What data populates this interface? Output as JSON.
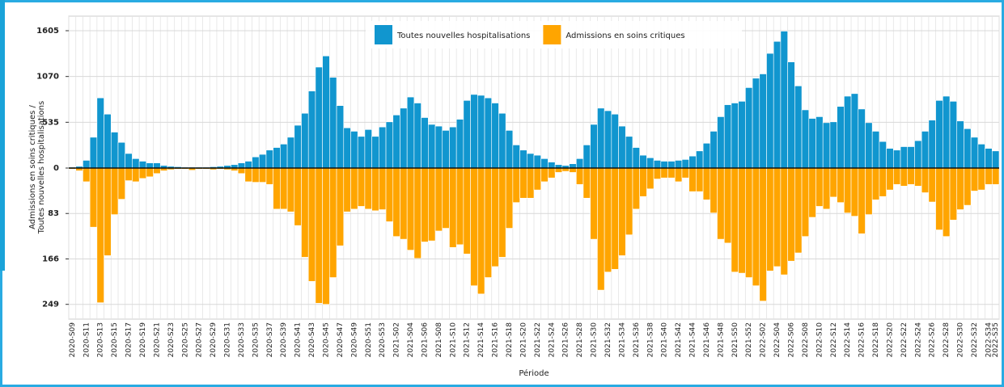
{
  "chart_data": {
    "type": "mirror-bar",
    "y_label_lines": [
      "Admissions en soins critiques /",
      "Toutes nouvelles hospitalisations"
    ],
    "x_label": "Période",
    "legend_position": "top-center",
    "grid": true,
    "ylim": [
      0,
      1775
    ],
    "yticks": [
      0,
      535,
      1070,
      1605
    ],
    "y2lim": [
      0,
      276
    ],
    "y2ticks": [
      83,
      166,
      249
    ],
    "y2_direction": "down",
    "categories": [
      "2020-S09",
      null,
      "2020-S11",
      null,
      "2020-S13",
      null,
      "2020-S15",
      null,
      "2020-S17",
      null,
      "2020-S19",
      null,
      "2020-S21",
      null,
      "2020-S23",
      null,
      "2020-S25",
      null,
      "2020-S27",
      null,
      "2020-S29",
      null,
      "2020-S31",
      null,
      "2020-S33",
      null,
      "2020-S35",
      null,
      "2020-S37",
      null,
      "2020-S39",
      null,
      "2020-S41",
      null,
      "2020-S43",
      null,
      "2020-S45",
      null,
      "2020-S47",
      null,
      "2020-S49",
      null,
      "2020-S51",
      null,
      "2020-S53",
      null,
      "2021-S02",
      null,
      "2021-S04",
      null,
      "2021-S06",
      null,
      "2021-S08",
      null,
      "2021-S10",
      null,
      "2021-S12",
      null,
      "2021-S14",
      null,
      "2021-S16",
      null,
      "2021-S18",
      null,
      "2021-S20",
      null,
      "2021-S22",
      null,
      "2021-S24",
      null,
      "2021-S26",
      null,
      "2021-S28",
      null,
      "2021-S30",
      null,
      "2021-S32",
      null,
      "2021-S34",
      null,
      "2021-S36",
      null,
      "2021-S38",
      null,
      "2021-S40",
      null,
      "2021-S42",
      null,
      "2021-S44",
      null,
      "2021-S46",
      null,
      "2021-S48",
      null,
      "2021-S50",
      null,
      "2021-S52",
      null,
      "2022-S02",
      null,
      "2022-S04",
      null,
      "2022-S06",
      null,
      "2022-S08",
      null,
      "2022-S10",
      null,
      "2022-S12",
      null,
      "2022-S14",
      null,
      "2022-S16",
      null,
      "2022-S18",
      null,
      "2022-S20",
      null,
      "2022-S22",
      null,
      "2022-S24",
      null,
      "2022-S26",
      null,
      "2022-S28",
      null,
      "2022-S30",
      null,
      "2022-S32",
      null,
      "2022-S34",
      "2022-S35"
    ],
    "series": [
      {
        "name": "Toutes nouvelles hospitalisations",
        "color": "#1196cf",
        "values": [
          10,
          20,
          90,
          360,
          820,
          630,
          420,
          300,
          170,
          110,
          80,
          60,
          60,
          30,
          20,
          15,
          10,
          10,
          10,
          10,
          15,
          20,
          30,
          40,
          60,
          80,
          130,
          160,
          210,
          240,
          280,
          360,
          500,
          640,
          900,
          1180,
          1310,
          1060,
          730,
          470,
          430,
          370,
          450,
          370,
          480,
          540,
          620,
          700,
          830,
          760,
          590,
          510,
          490,
          440,
          480,
          570,
          790,
          860,
          850,
          820,
          760,
          640,
          440,
          270,
          210,
          170,
          150,
          110,
          70,
          40,
          30,
          50,
          110,
          270,
          510,
          700,
          670,
          630,
          490,
          370,
          240,
          150,
          120,
          90,
          80,
          80,
          90,
          100,
          140,
          200,
          290,
          430,
          600,
          740,
          760,
          780,
          940,
          1050,
          1100,
          1340,
          1480,
          1600,
          1240,
          960,
          680,
          580,
          600,
          530,
          540,
          720,
          840,
          870,
          690,
          530,
          430,
          310,
          230,
          210,
          250,
          250,
          320,
          430,
          560,
          790,
          840,
          780,
          550,
          460,
          360,
          280,
          230,
          200
        ]
      },
      {
        "name": "Admissions en soins critiques",
        "color": "#ffa500",
        "axis": "y2",
        "values": [
          2,
          5,
          25,
          108,
          246,
          160,
          85,
          57,
          23,
          25,
          19,
          16,
          10,
          5,
          3,
          2,
          2,
          4,
          2,
          2,
          3,
          2,
          3,
          5,
          10,
          25,
          26,
          26,
          30,
          75,
          75,
          80,
          105,
          163,
          207,
          247,
          249,
          200,
          142,
          80,
          75,
          70,
          75,
          78,
          76,
          98,
          125,
          130,
          150,
          165,
          135,
          133,
          115,
          110,
          145,
          140,
          157,
          215,
          230,
          200,
          180,
          163,
          110,
          63,
          55,
          55,
          40,
          25,
          18,
          8,
          6,
          8,
          30,
          55,
          130,
          223,
          190,
          185,
          160,
          122,
          75,
          52,
          38,
          20,
          18,
          18,
          25,
          18,
          43,
          43,
          58,
          82,
          130,
          137,
          190,
          192,
          200,
          215,
          243,
          188,
          180,
          195,
          170,
          155,
          125,
          90,
          70,
          75,
          53,
          63,
          82,
          88,
          120,
          85,
          58,
          52,
          40,
          30,
          33,
          30,
          33,
          45,
          62,
          113,
          125,
          95,
          76,
          68,
          42,
          40,
          30,
          30
        ]
      }
    ]
  }
}
